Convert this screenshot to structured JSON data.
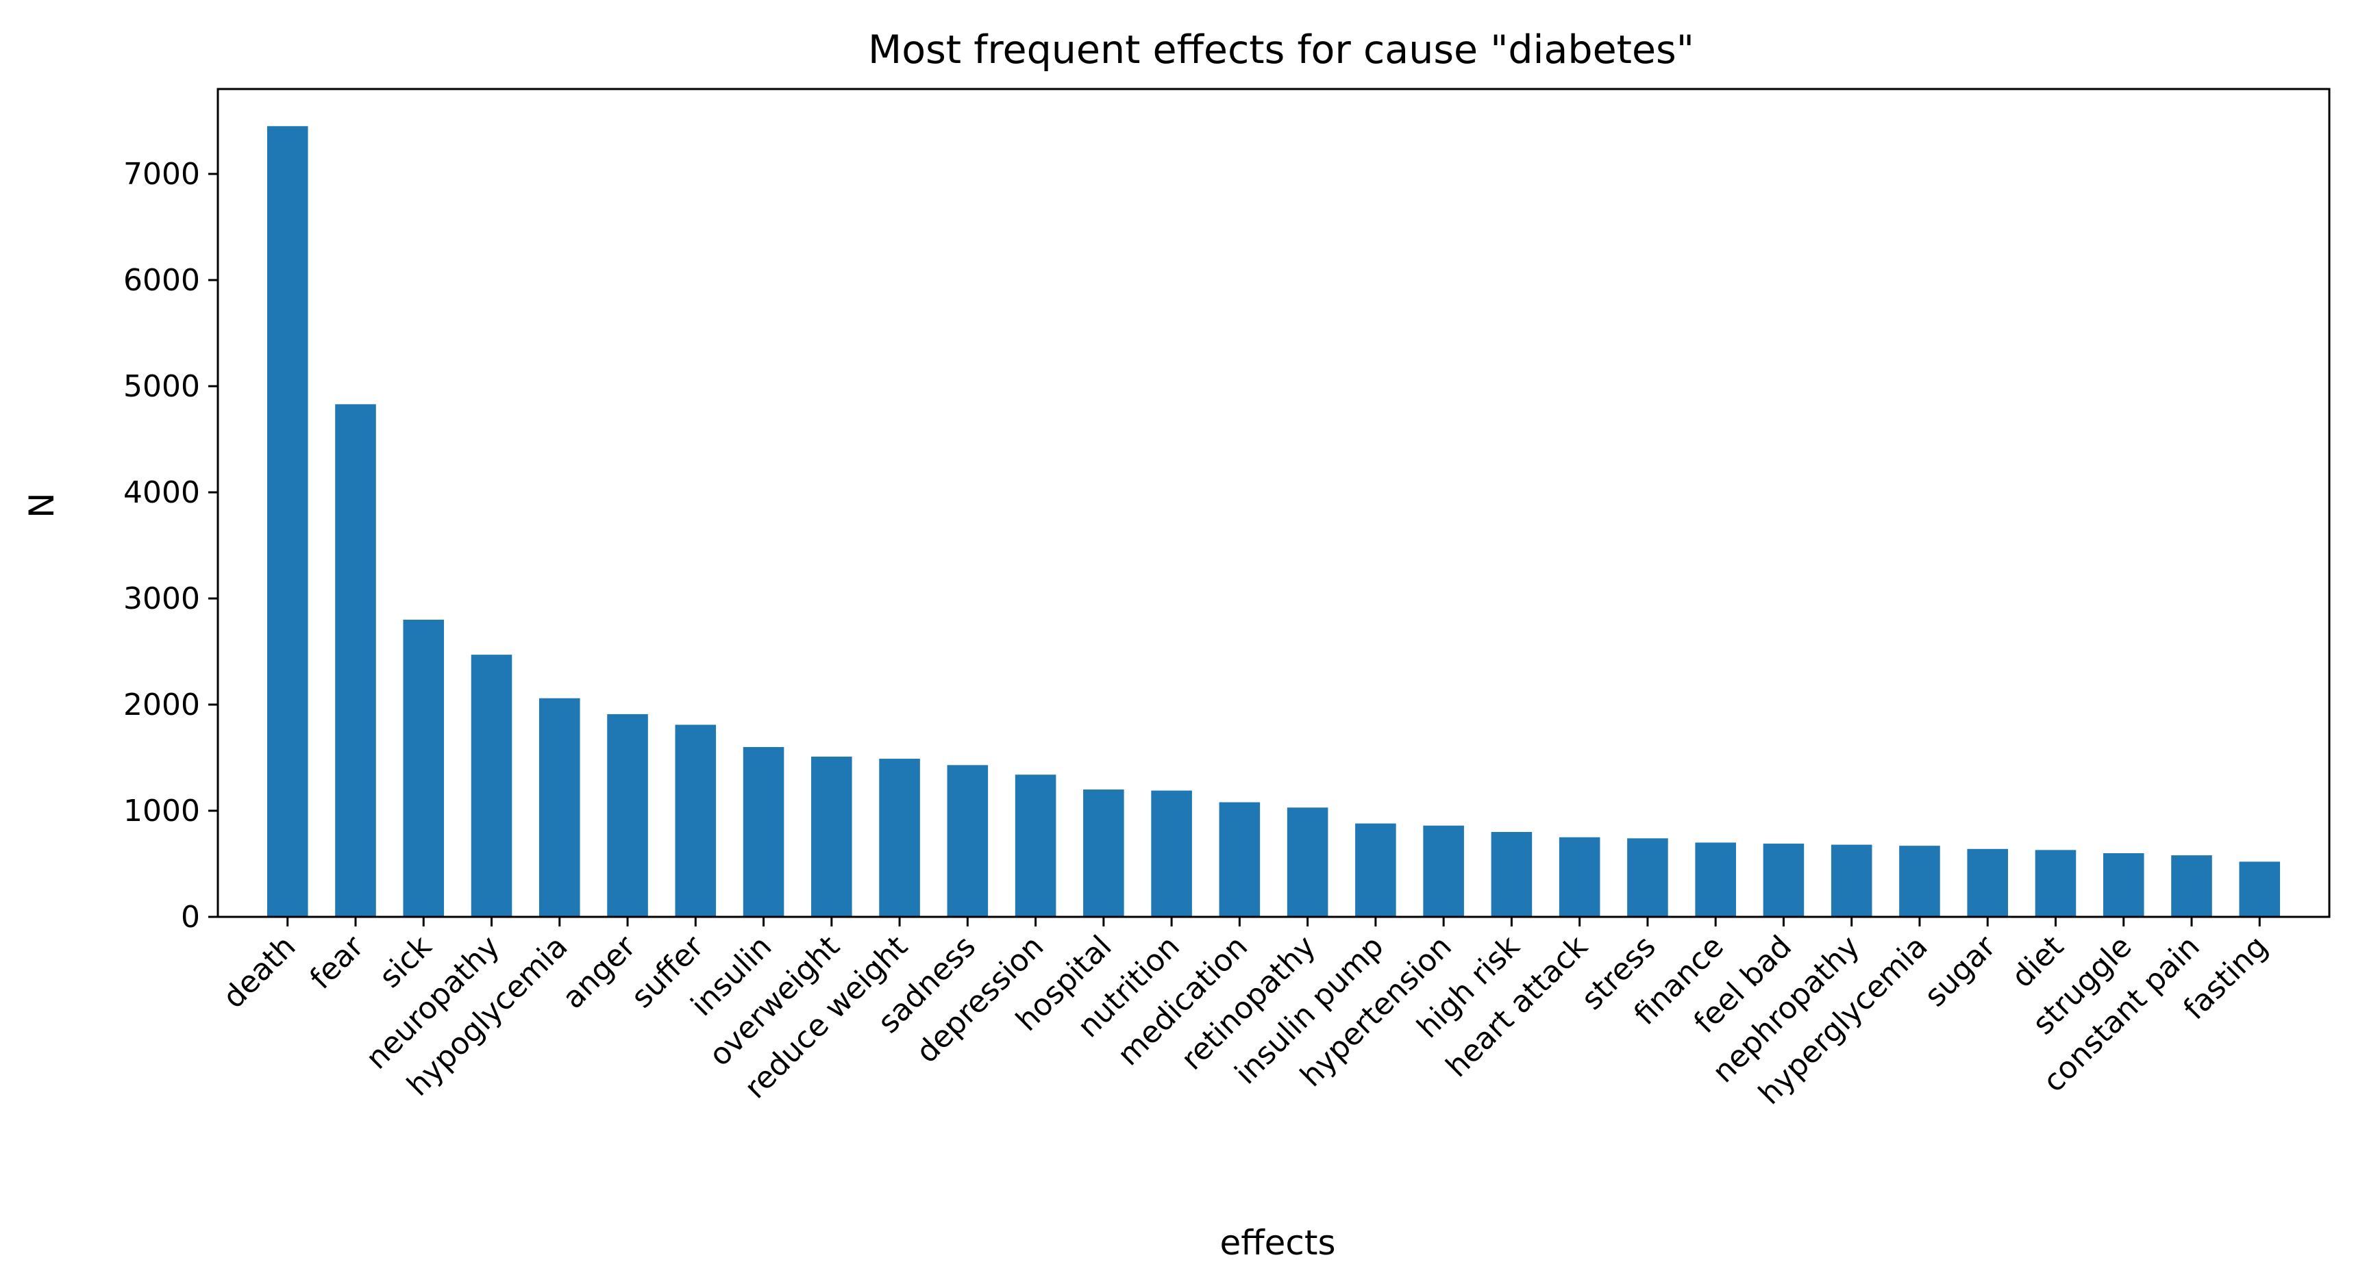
{
  "chart_data": {
    "type": "bar",
    "title": "Most frequent effects for cause \"diabetes\"",
    "xlabel": "effects",
    "ylabel": "N",
    "ylim": [
      0,
      7800
    ],
    "yticks": [
      0,
      1000,
      2000,
      3000,
      4000,
      5000,
      6000,
      7000
    ],
    "grid": false,
    "legend": "none",
    "bar_color": "#1f77b4",
    "categories": [
      "death",
      "fear",
      "sick",
      "neuropathy",
      "hypoglycemia",
      "anger",
      "suffer",
      "insulin",
      "overweight",
      "reduce weight",
      "sadness",
      "depression",
      "hospital",
      "nutrition",
      "medication",
      "retinopathy",
      "insulin pump",
      "hypertension",
      "high risk",
      "heart attack",
      "stress",
      "finance",
      "feel bad",
      "nephropathy",
      "hyperglycemia",
      "sugar",
      "diet",
      "struggle",
      "constant pain",
      "fasting"
    ],
    "values": [
      7450,
      4830,
      2800,
      2470,
      2060,
      1910,
      1810,
      1600,
      1510,
      1490,
      1430,
      1340,
      1200,
      1190,
      1080,
      1030,
      880,
      860,
      800,
      750,
      740,
      700,
      690,
      680,
      670,
      640,
      630,
      600,
      580,
      520
    ]
  }
}
